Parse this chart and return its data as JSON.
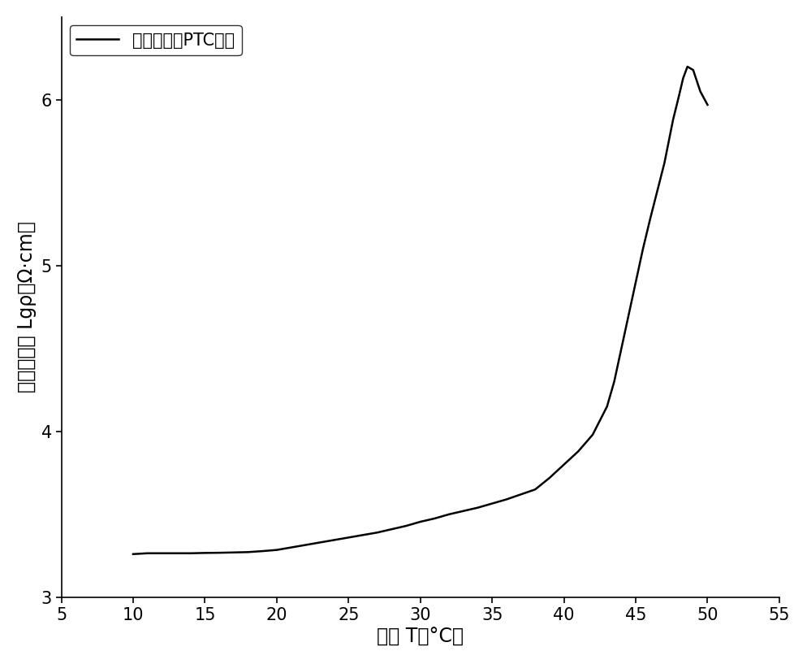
{
  "x": [
    10,
    11,
    12,
    13,
    14,
    15,
    16,
    17,
    18,
    19,
    20,
    21,
    22,
    23,
    24,
    25,
    26,
    27,
    28,
    29,
    30,
    31,
    32,
    33,
    34,
    35,
    36,
    37,
    38,
    39,
    40,
    41,
    42,
    43,
    43.5,
    44,
    44.5,
    45,
    45.5,
    46,
    46.5,
    47,
    47.3,
    47.6,
    48,
    48.3,
    48.6,
    49,
    49.5,
    50
  ],
  "y": [
    3.26,
    3.265,
    3.265,
    3.265,
    3.265,
    3.267,
    3.268,
    3.27,
    3.272,
    3.278,
    3.285,
    3.3,
    3.315,
    3.33,
    3.345,
    3.36,
    3.375,
    3.39,
    3.41,
    3.43,
    3.455,
    3.475,
    3.5,
    3.52,
    3.54,
    3.565,
    3.59,
    3.62,
    3.65,
    3.72,
    3.8,
    3.88,
    3.98,
    4.15,
    4.3,
    4.5,
    4.7,
    4.9,
    5.1,
    5.28,
    5.45,
    5.62,
    5.75,
    5.88,
    6.02,
    6.13,
    6.2,
    6.18,
    6.05,
    5.97
  ],
  "xlim": [
    5,
    55
  ],
  "ylim": [
    3,
    6.5
  ],
  "xticks": [
    5,
    10,
    15,
    20,
    25,
    30,
    35,
    40,
    45,
    50,
    55
  ],
  "yticks": [
    3,
    4,
    5,
    6
  ],
  "xlabel": "温度 T（°C）",
  "ylabel": "对数电阔率 Lgρ（Ω·cm）",
  "legend_label": "石腊基柔性PTC材料",
  "line_color": "#000000",
  "line_width": 1.8,
  "background_color": "#ffffff",
  "label_fontsize": 17,
  "tick_fontsize": 15,
  "legend_fontsize": 15
}
